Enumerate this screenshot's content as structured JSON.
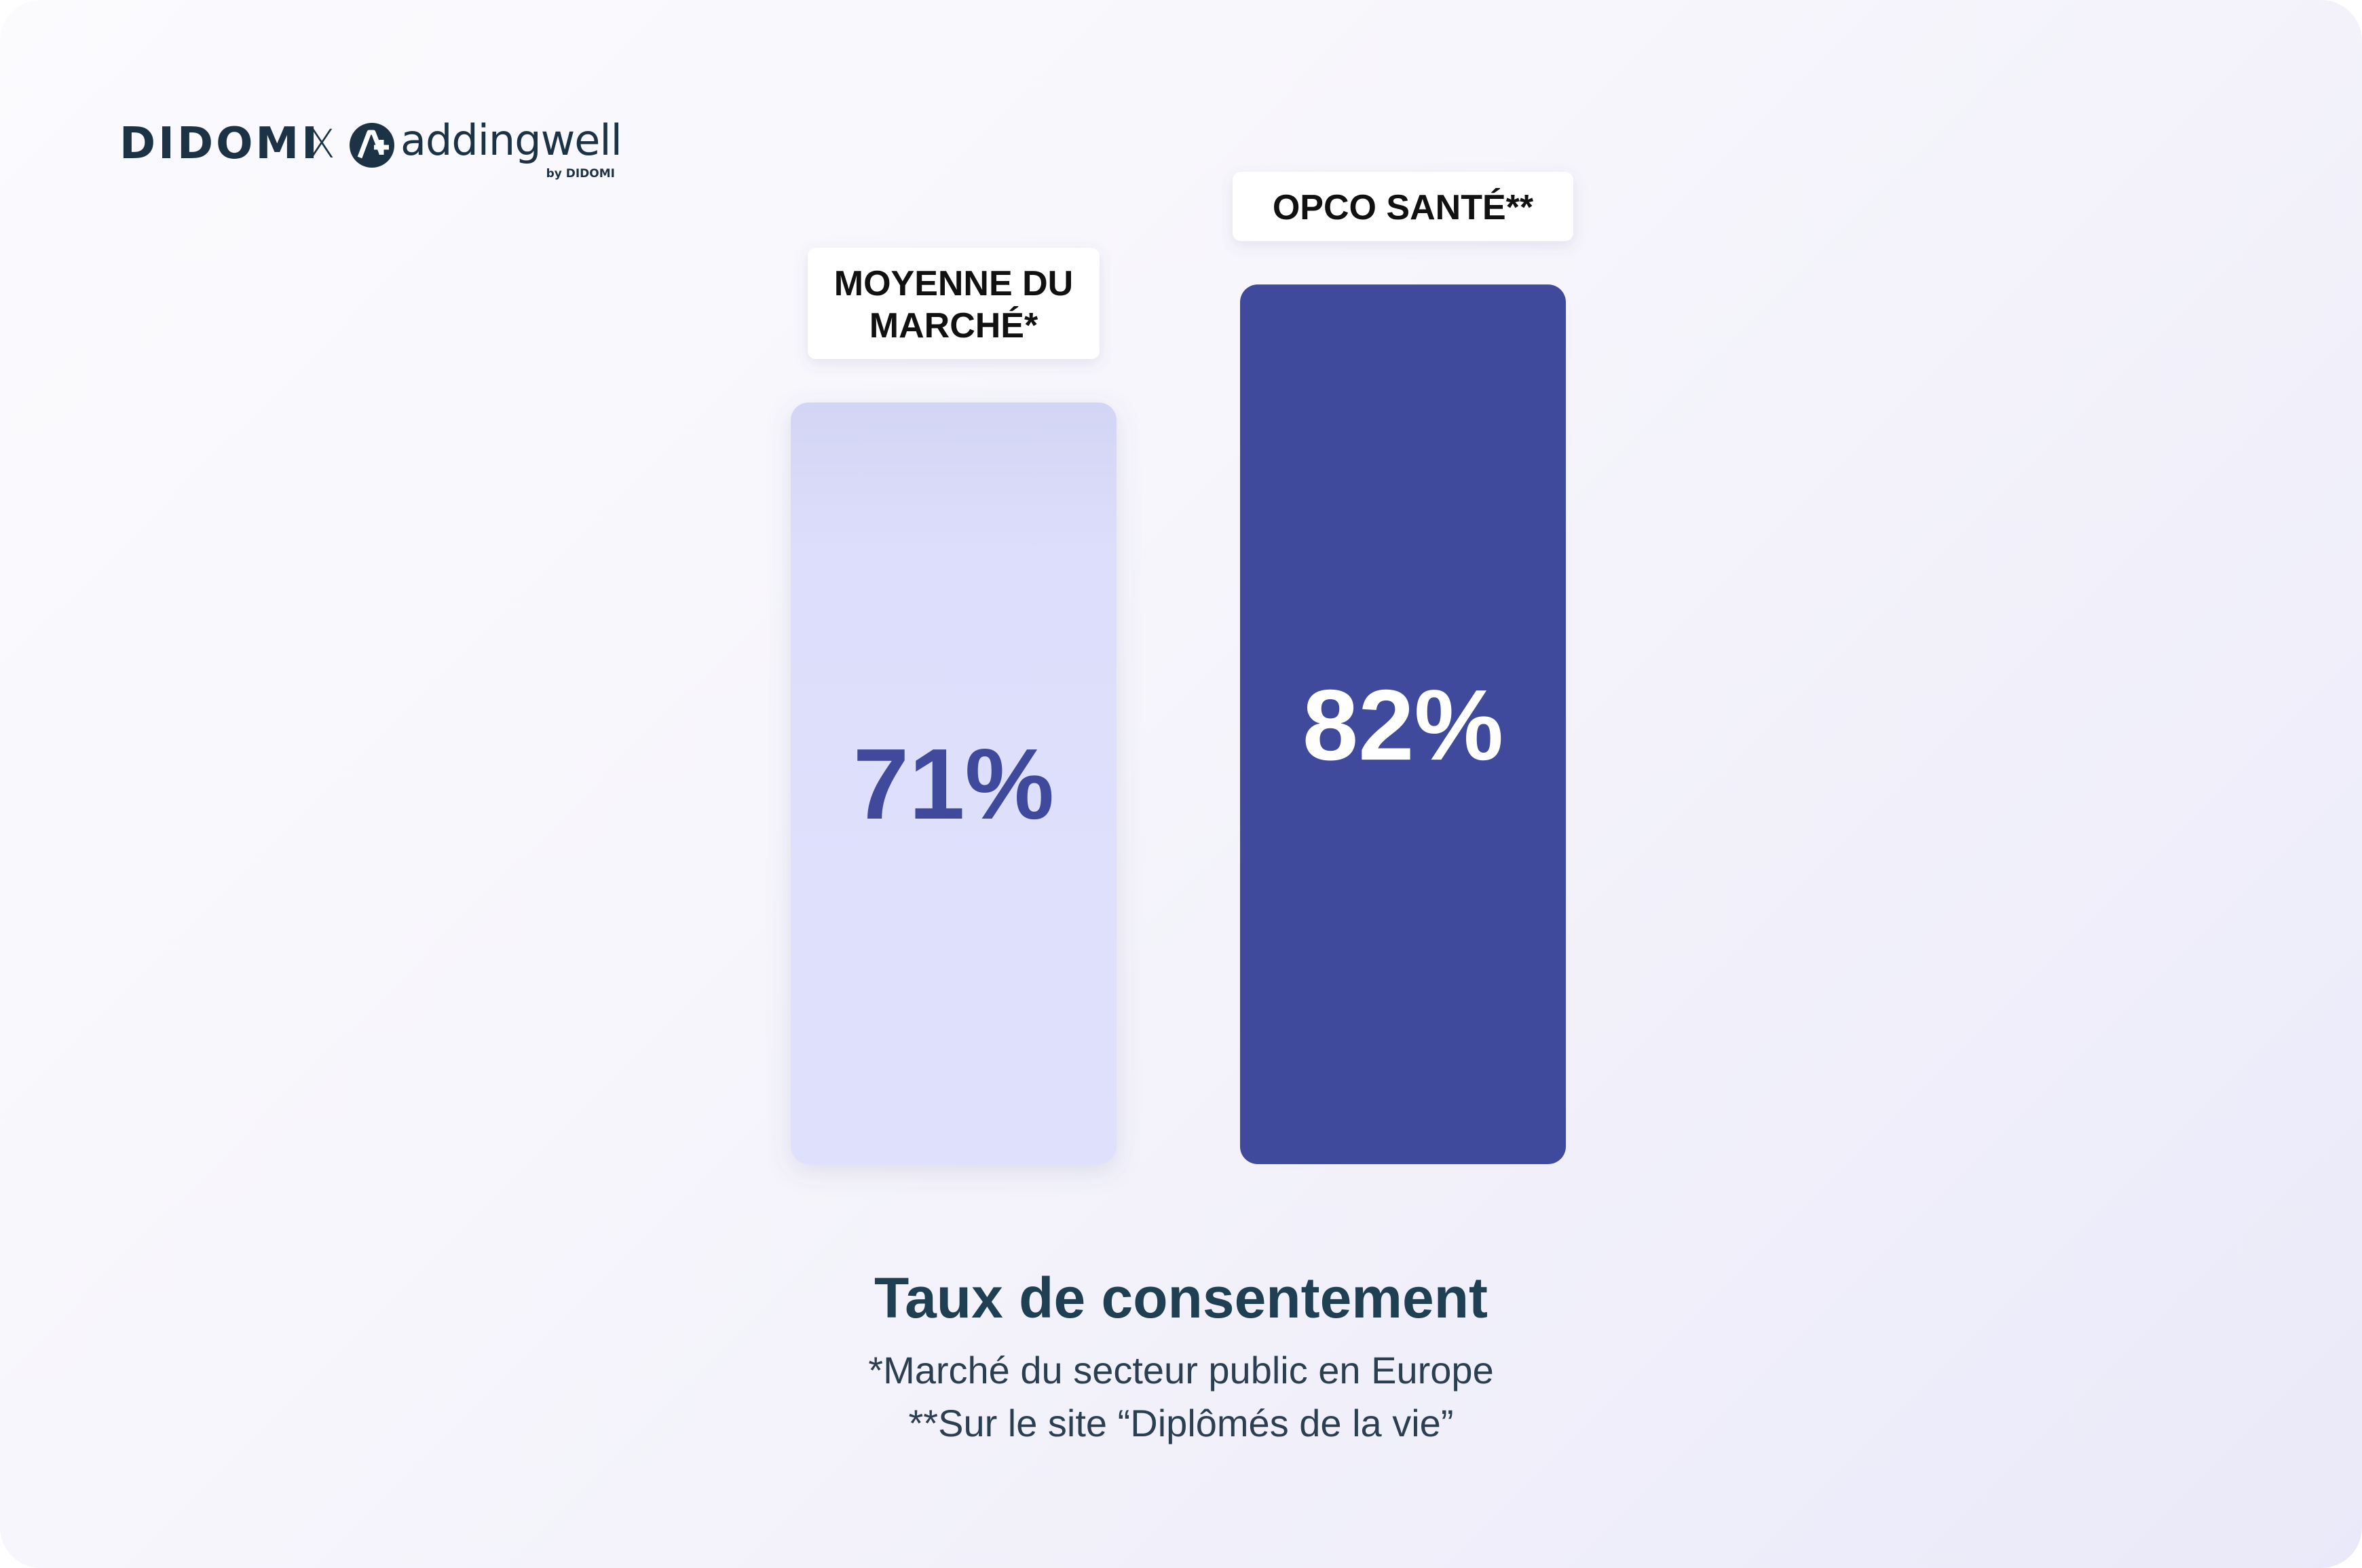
{
  "branding": {
    "didomi": "DIDOMI",
    "separator": "X",
    "addingwell": "addingwell",
    "by_line": "by DIDOMI",
    "icon": "addingwell-a-plus-icon"
  },
  "chart_data": {
    "type": "bar",
    "title": "Taux de consentement",
    "categories": [
      "MOYENNE DU MARCHÉ*",
      "OPCO SANTÉ**"
    ],
    "category_lines": [
      [
        "MOYENNE DU",
        "MARCHÉ*"
      ],
      [
        "OPCO SANTÉ**"
      ]
    ],
    "values": [
      71,
      82
    ],
    "value_labels": [
      "71%",
      "82%"
    ],
    "unit": "%",
    "reference_line": "dashed horizontal line",
    "grid": false,
    "legend": "none",
    "colors": {
      "market_bar": "#dfe1fc",
      "opco_bar": "#3f4a9c",
      "market_label": "#3f4a9c",
      "opco_label": "#ffffff"
    }
  },
  "caption": {
    "title": "Taux de consentement",
    "footnote_1": "*Marché du secteur public en Europe",
    "footnote_2": "**Sur le site “Diplômés de la vie”"
  }
}
